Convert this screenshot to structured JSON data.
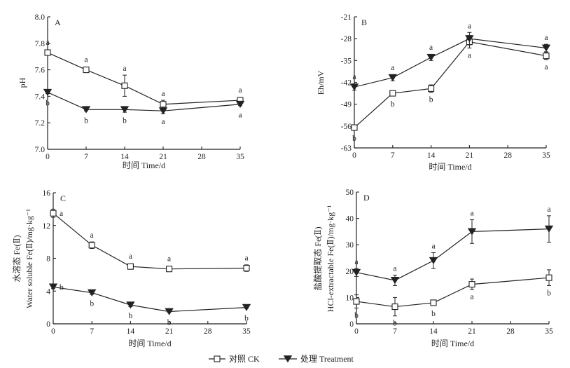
{
  "legend": {
    "ck_label": "对照 CK",
    "treatment_label": "处理 Treatment"
  },
  "chart_data": [
    {
      "panel": "A",
      "type": "line",
      "x": [
        0,
        7,
        14,
        21,
        35
      ],
      "xticks": [
        0,
        7,
        14,
        21,
        28,
        35
      ],
      "xlim": [
        0,
        35
      ],
      "xlabel": "时间 Time/d",
      "ylabel": "pH",
      "ylim": [
        7.0,
        8.0
      ],
      "yticks": [
        "7.0",
        "7.2",
        "7.4",
        "7.6",
        "7.8",
        "8.0"
      ],
      "series": [
        {
          "name": "对照 CK",
          "marker": "open-square",
          "values": [
            7.73,
            7.6,
            7.48,
            7.34,
            7.37
          ],
          "errors": [
            0.02,
            0.01,
            0.08,
            0.03,
            0.02
          ],
          "letters": [
            "a",
            "a",
            "a",
            "a",
            "a"
          ],
          "letter_pos": [
            "above",
            "above",
            "above",
            "above",
            "above"
          ]
        },
        {
          "name": "处理 Treatment",
          "marker": "filled-triangle-down",
          "values": [
            7.43,
            7.3,
            7.3,
            7.29,
            7.34
          ],
          "errors": [
            0.01,
            0.01,
            0.02,
            0.02,
            0.01
          ],
          "letters": [
            "b",
            "b",
            "b",
            "a",
            "a"
          ],
          "letter_pos": [
            "below",
            "below",
            "below",
            "below",
            "below"
          ]
        }
      ]
    },
    {
      "panel": "B",
      "type": "line",
      "x": [
        0,
        7,
        14,
        21,
        35
      ],
      "xticks": [
        0,
        7,
        14,
        21,
        28,
        35
      ],
      "xlim": [
        0,
        35
      ],
      "xlabel": "时间 Time/d",
      "ylabel": "Eh/mV",
      "ylim": [
        -63,
        -21
      ],
      "yticks": [
        "-63",
        "-56",
        "-49",
        "-42",
        "-35",
        "-28",
        "-21"
      ],
      "series": [
        {
          "name": "对照 CK",
          "marker": "open-square",
          "values": [
            -56.5,
            -45.5,
            -44.0,
            -29.0,
            -33.5
          ],
          "errors": [
            0.8,
            0.8,
            1.2,
            2.0,
            1.2
          ],
          "letters": [
            "b",
            "b",
            "b",
            "a",
            "a"
          ],
          "letter_pos": [
            "below",
            "below",
            "below",
            "below",
            "below"
          ]
        },
        {
          "name": "处理 Treatment",
          "marker": "filled-triangle-down",
          "values": [
            -43.5,
            -40.5,
            -34.0,
            -28.0,
            -31.0
          ],
          "errors": [
            1.0,
            1.0,
            1.0,
            2.0,
            1.2
          ],
          "letters": [
            "a",
            "a",
            "a",
            "a",
            "a"
          ],
          "letter_pos": [
            "above",
            "above",
            "above",
            "above",
            "above"
          ]
        }
      ]
    },
    {
      "panel": "C",
      "type": "line",
      "x": [
        0,
        7,
        14,
        21,
        35
      ],
      "xticks": [
        0,
        7,
        14,
        21,
        28,
        35
      ],
      "xlim": [
        0,
        35
      ],
      "xlabel": "时间 Time/d",
      "ylabel": "水溶态 Fe(Ⅱ) Water soluble Fe(Ⅱ)/mg·kg⁻¹",
      "ylim": [
        0,
        16
      ],
      "yticks": [
        "0",
        "4",
        "8",
        "12",
        "16"
      ],
      "series": [
        {
          "name": "对照 CK",
          "marker": "open-square",
          "values": [
            13.5,
            9.6,
            7.0,
            6.7,
            6.8
          ],
          "errors": [
            0.5,
            0.4,
            0.2,
            0.2,
            0.4
          ],
          "letters": [
            "a",
            "a",
            "a",
            "a",
            "a"
          ],
          "letter_pos": [
            "right",
            "above",
            "above",
            "above",
            "above"
          ]
        },
        {
          "name": "处理 Treatment",
          "marker": "filled-triangle-down",
          "values": [
            4.5,
            3.8,
            2.3,
            1.5,
            2.0
          ],
          "errors": [
            0.2,
            0.2,
            0.2,
            0.1,
            0.1
          ],
          "letters": [
            "b",
            "b",
            "b",
            "b",
            "b"
          ],
          "letter_pos": [
            "right",
            "below",
            "below",
            "below",
            "below"
          ]
        }
      ]
    },
    {
      "panel": "D",
      "type": "line",
      "x": [
        0,
        7,
        14,
        21,
        35
      ],
      "xticks": [
        0,
        7,
        14,
        21,
        28,
        35
      ],
      "xlim": [
        0,
        35
      ],
      "xlabel": "时间 Time/d",
      "ylabel": "盐酸提取态 Fe(Ⅱ) HCl-extractable Fe(Ⅱ)/mg·kg⁻¹",
      "ylim": [
        0,
        50
      ],
      "yticks": [
        "0",
        "10",
        "20",
        "30",
        "40",
        "50"
      ],
      "series": [
        {
          "name": "对照 CK",
          "marker": "open-square",
          "values": [
            8.5,
            6.5,
            8.0,
            15.0,
            17.5
          ],
          "errors": [
            2.5,
            3.5,
            1.0,
            2.0,
            3.0
          ],
          "letters": [
            "b",
            "b",
            "b",
            "a",
            "b"
          ],
          "letter_pos": [
            "below",
            "below",
            "below",
            "below",
            "below"
          ]
        },
        {
          "name": "处理 Treatment",
          "marker": "filled-triangle-down",
          "values": [
            19.5,
            16.5,
            24.0,
            35.0,
            36.0
          ],
          "errors": [
            1.5,
            2.0,
            3.0,
            4.5,
            5.0
          ],
          "letters": [
            "a",
            "a",
            "a",
            "a",
            "a"
          ],
          "letter_pos": [
            "above",
            "above",
            "above",
            "above",
            "above"
          ]
        }
      ]
    }
  ]
}
